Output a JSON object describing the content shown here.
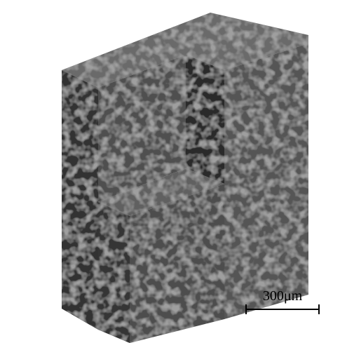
{
  "scale_bar": {
    "label": "300μm"
  }
}
